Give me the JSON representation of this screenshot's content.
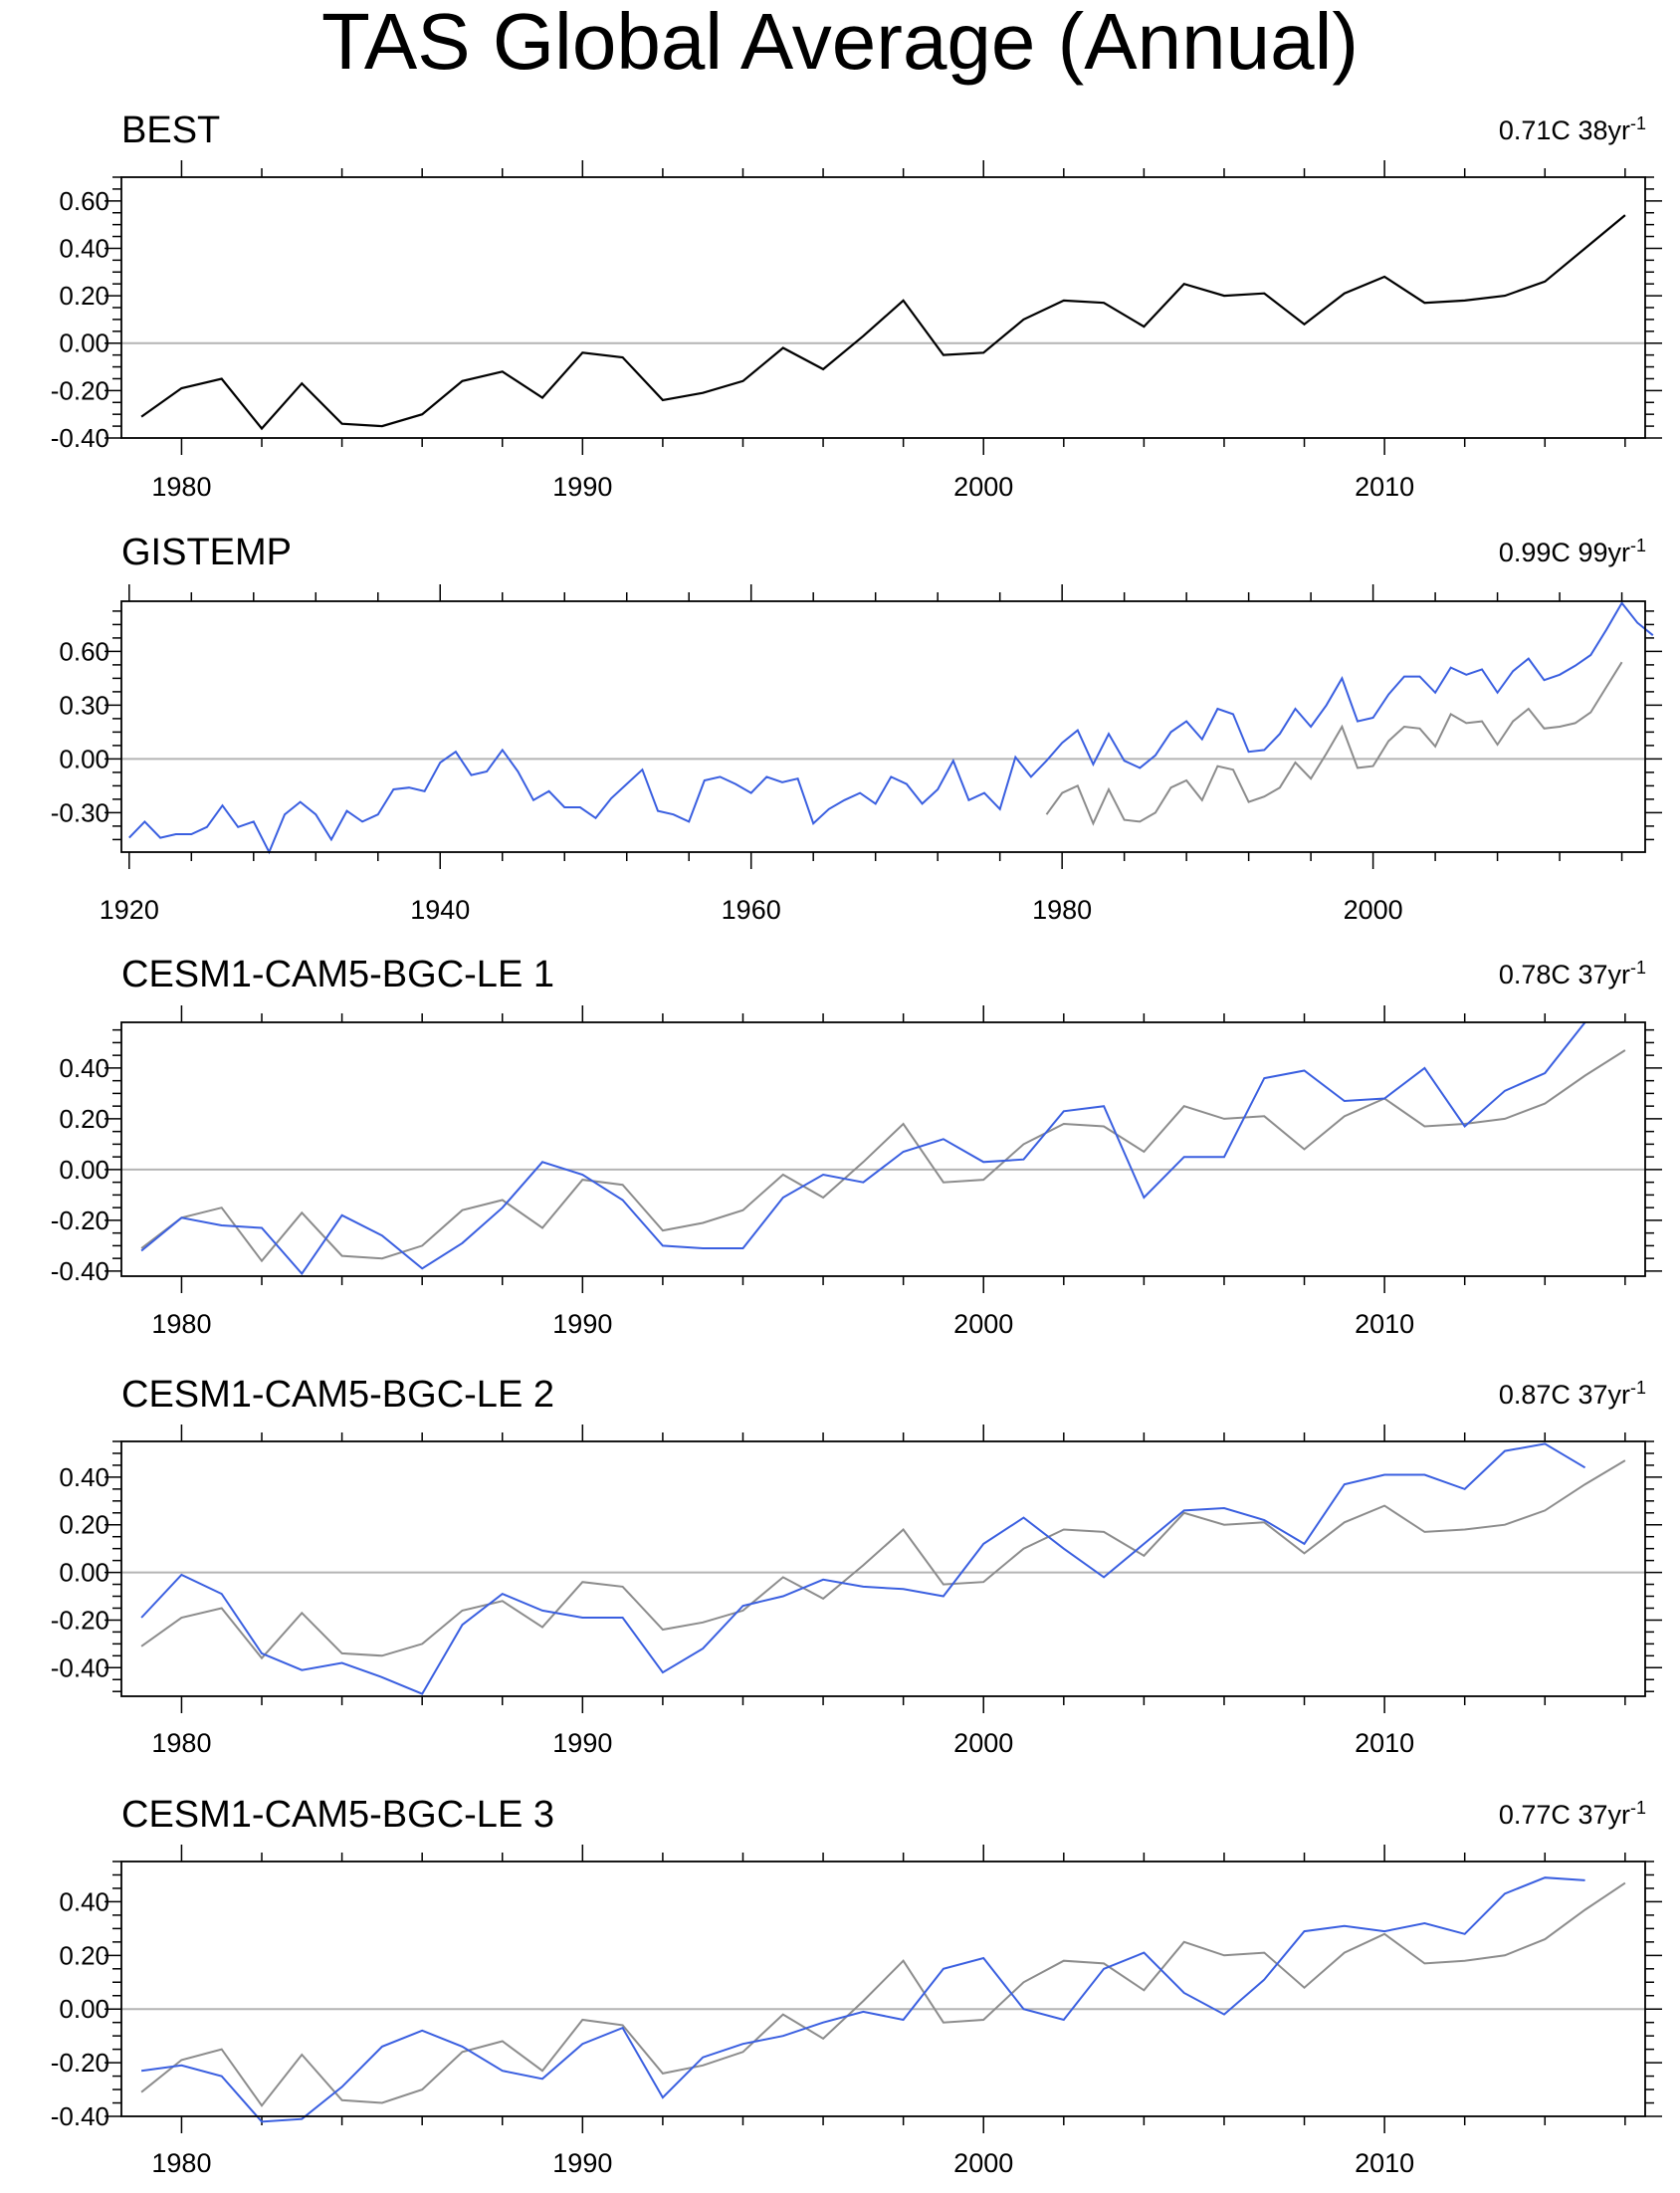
{
  "title": "TAS Global Average (Annual)",
  "colors": {
    "observed": "#000000",
    "model": "#3a5fe0",
    "reference": "#8c8c8c",
    "zero_line": "#b4b4b4",
    "axis": "#000000"
  },
  "chart_data": [
    {
      "type": "line",
      "title": "BEST",
      "trend_value": "0.71C",
      "trend_period": "38yr",
      "trend_exponent": "-1",
      "xlim": [
        1978.5,
        2016.5
      ],
      "ylim": [
        -0.4,
        0.7
      ],
      "yticks": [
        -0.4,
        -0.2,
        0.0,
        0.2,
        0.4,
        0.6
      ],
      "ytick_labels": [
        "-0.40",
        "-0.20",
        "0.00",
        "0.20",
        "0.40",
        "0.60"
      ],
      "xticks": [
        1980,
        1990,
        2000,
        2010
      ],
      "xtick_labels": [
        "1980",
        "1990",
        "2000",
        "2010"
      ],
      "series": [
        {
          "name": "BEST",
          "role": "observed",
          "x_start": 1979,
          "values": [
            -0.31,
            -0.19,
            -0.15,
            -0.36,
            -0.17,
            -0.34,
            -0.35,
            -0.3,
            -0.16,
            -0.12,
            -0.23,
            -0.04,
            -0.06,
            -0.24,
            -0.21,
            -0.16,
            -0.02,
            -0.11,
            0.03,
            0.18,
            -0.05,
            -0.04,
            0.1,
            0.18,
            0.17,
            0.07,
            0.25,
            0.2,
            0.21,
            0.08,
            0.21,
            0.28,
            0.17,
            0.18,
            0.2,
            0.26,
            0.4,
            0.54
          ]
        }
      ]
    },
    {
      "type": "line",
      "title": "GISTEMP",
      "trend_value": "0.99C",
      "trend_period": "99yr",
      "trend_exponent": "-1",
      "xlim": [
        1919.5,
        2017.5
      ],
      "ylim": [
        -0.52,
        0.88
      ],
      "yticks": [
        -0.3,
        0.0,
        0.3,
        0.6
      ],
      "ytick_labels": [
        "-0.30",
        "0.00",
        "0.30",
        "0.60"
      ],
      "xticks": [
        1920,
        1940,
        1960,
        1980,
        2000
      ],
      "xtick_labels": [
        "1920",
        "1940",
        "1960",
        "1980",
        "2000"
      ],
      "series": [
        {
          "name": "GISTEMP",
          "role": "model",
          "x_start": 1920,
          "values": [
            -0.44,
            -0.35,
            -0.44,
            -0.42,
            -0.42,
            -0.38,
            -0.26,
            -0.38,
            -0.35,
            -0.52,
            -0.31,
            -0.24,
            -0.31,
            -0.45,
            -0.29,
            -0.35,
            -0.31,
            -0.17,
            -0.16,
            -0.18,
            -0.02,
            0.04,
            -0.09,
            -0.07,
            0.05,
            -0.07,
            -0.23,
            -0.18,
            -0.27,
            -0.27,
            -0.33,
            -0.22,
            -0.14,
            -0.06,
            -0.29,
            -0.31,
            -0.35,
            -0.12,
            -0.1,
            -0.14,
            -0.19,
            -0.1,
            -0.13,
            -0.11,
            -0.36,
            -0.28,
            -0.23,
            -0.19,
            -0.25,
            -0.1,
            -0.14,
            -0.25,
            -0.17,
            -0.01,
            -0.23,
            -0.19,
            -0.28,
            0.01,
            -0.1,
            -0.01,
            0.09,
            0.16,
            -0.03,
            0.14,
            -0.01,
            -0.05,
            0.02,
            0.15,
            0.21,
            0.11,
            0.28,
            0.25,
            0.04,
            0.05,
            0.14,
            0.28,
            0.18,
            0.3,
            0.45,
            0.21,
            0.23,
            0.36,
            0.46,
            0.46,
            0.37,
            0.51,
            0.47,
            0.5,
            0.37,
            0.49,
            0.56,
            0.44,
            0.47,
            0.52,
            0.58,
            0.72,
            0.87,
            0.76,
            0.69
          ]
        },
        {
          "name": "BEST",
          "role": "reference",
          "x_start": 1979,
          "values": [
            -0.31,
            -0.19,
            -0.15,
            -0.36,
            -0.17,
            -0.34,
            -0.35,
            -0.3,
            -0.16,
            -0.12,
            -0.23,
            -0.04,
            -0.06,
            -0.24,
            -0.21,
            -0.16,
            -0.02,
            -0.11,
            0.03,
            0.18,
            -0.05,
            -0.04,
            0.1,
            0.18,
            0.17,
            0.07,
            0.25,
            0.2,
            0.21,
            0.08,
            0.21,
            0.28,
            0.17,
            0.18,
            0.2,
            0.26,
            0.4,
            0.54
          ]
        }
      ]
    },
    {
      "type": "line",
      "title": "CESM1-CAM5-BGC-LE 1",
      "trend_value": "0.78C",
      "trend_period": "37yr",
      "trend_exponent": "-1",
      "xlim": [
        1978.5,
        2016.5
      ],
      "ylim": [
        -0.42,
        0.58
      ],
      "yticks": [
        -0.4,
        -0.2,
        0.0,
        0.2,
        0.4
      ],
      "ytick_labels": [
        "-0.40",
        "-0.20",
        "0.00",
        "0.20",
        "0.40"
      ],
      "xticks": [
        1980,
        1990,
        2000,
        2010
      ],
      "xtick_labels": [
        "1980",
        "1990",
        "2000",
        "2010"
      ],
      "series": [
        {
          "name": "CESM1-CAM5-BGC-LE 1",
          "role": "model",
          "x_start": 1979,
          "values": [
            -0.32,
            -0.19,
            -0.22,
            -0.23,
            -0.41,
            -0.18,
            -0.26,
            -0.39,
            -0.29,
            -0.15,
            0.03,
            -0.02,
            -0.12,
            -0.3,
            -0.31,
            -0.31,
            -0.11,
            -0.02,
            -0.05,
            0.07,
            0.12,
            0.03,
            0.04,
            0.23,
            0.25,
            -0.11,
            0.05,
            0.05,
            0.36,
            0.39,
            0.27,
            0.28,
            0.4,
            0.17,
            0.31,
            0.38,
            0.58
          ]
        },
        {
          "name": "BEST",
          "role": "reference",
          "x_start": 1979,
          "values": [
            -0.31,
            -0.19,
            -0.15,
            -0.36,
            -0.17,
            -0.34,
            -0.35,
            -0.3,
            -0.16,
            -0.12,
            -0.23,
            -0.04,
            -0.06,
            -0.24,
            -0.21,
            -0.16,
            -0.02,
            -0.11,
            0.03,
            0.18,
            -0.05,
            -0.04,
            0.1,
            0.18,
            0.17,
            0.07,
            0.25,
            0.2,
            0.21,
            0.08,
            0.21,
            0.28,
            0.17,
            0.18,
            0.2,
            0.26,
            0.37,
            0.47
          ]
        }
      ]
    },
    {
      "type": "line",
      "title": "CESM1-CAM5-BGC-LE 2",
      "trend_value": "0.87C",
      "trend_period": "37yr",
      "trend_exponent": "-1",
      "xlim": [
        1978.5,
        2016.5
      ],
      "ylim": [
        -0.52,
        0.55
      ],
      "yticks": [
        -0.4,
        -0.2,
        0.0,
        0.2,
        0.4
      ],
      "ytick_labels": [
        "-0.40",
        "-0.20",
        "0.00",
        "0.20",
        "0.40"
      ],
      "xticks": [
        1980,
        1990,
        2000,
        2010
      ],
      "xtick_labels": [
        "1980",
        "1990",
        "2000",
        "2010"
      ],
      "series": [
        {
          "name": "CESM1-CAM5-BGC-LE 2",
          "role": "model",
          "x_start": 1979,
          "values": [
            -0.19,
            -0.01,
            -0.09,
            -0.34,
            -0.41,
            -0.38,
            -0.44,
            -0.51,
            -0.22,
            -0.09,
            -0.16,
            -0.19,
            -0.19,
            -0.42,
            -0.32,
            -0.14,
            -0.1,
            -0.03,
            -0.06,
            -0.07,
            -0.1,
            0.12,
            0.23,
            0.1,
            -0.02,
            0.12,
            0.26,
            0.27,
            0.22,
            0.12,
            0.37,
            0.41,
            0.41,
            0.35,
            0.51,
            0.54,
            0.44
          ]
        },
        {
          "name": "BEST",
          "role": "reference",
          "x_start": 1979,
          "values": [
            -0.31,
            -0.19,
            -0.15,
            -0.36,
            -0.17,
            -0.34,
            -0.35,
            -0.3,
            -0.16,
            -0.12,
            -0.23,
            -0.04,
            -0.06,
            -0.24,
            -0.21,
            -0.16,
            -0.02,
            -0.11,
            0.03,
            0.18,
            -0.05,
            -0.04,
            0.1,
            0.18,
            0.17,
            0.07,
            0.25,
            0.2,
            0.21,
            0.08,
            0.21,
            0.28,
            0.17,
            0.18,
            0.2,
            0.26,
            0.37,
            0.47
          ]
        }
      ]
    },
    {
      "type": "line",
      "title": "CESM1-CAM5-BGC-LE 3",
      "trend_value": "0.77C",
      "trend_period": "37yr",
      "trend_exponent": "-1",
      "xlim": [
        1978.5,
        2016.5
      ],
      "ylim": [
        -0.4,
        0.55
      ],
      "yticks": [
        -0.4,
        -0.2,
        0.0,
        0.2,
        0.4
      ],
      "ytick_labels": [
        "-0.40",
        "-0.20",
        "0.00",
        "0.20",
        "0.40"
      ],
      "xticks": [
        1980,
        1990,
        2000,
        2010
      ],
      "xtick_labels": [
        "1980",
        "1990",
        "2000",
        "2010"
      ],
      "series": [
        {
          "name": "CESM1-CAM5-BGC-LE 3",
          "role": "model",
          "x_start": 1979,
          "values": [
            -0.23,
            -0.21,
            -0.25,
            -0.42,
            -0.41,
            -0.29,
            -0.14,
            -0.08,
            -0.14,
            -0.23,
            -0.26,
            -0.13,
            -0.07,
            -0.33,
            -0.18,
            -0.13,
            -0.1,
            -0.05,
            -0.01,
            -0.04,
            0.15,
            0.19,
            0.0,
            -0.04,
            0.15,
            0.21,
            0.06,
            -0.02,
            0.11,
            0.29,
            0.31,
            0.29,
            0.32,
            0.28,
            0.43,
            0.49,
            0.48
          ]
        },
        {
          "name": "BEST",
          "role": "reference",
          "x_start": 1979,
          "values": [
            -0.31,
            -0.19,
            -0.15,
            -0.36,
            -0.17,
            -0.34,
            -0.35,
            -0.3,
            -0.16,
            -0.12,
            -0.23,
            -0.04,
            -0.06,
            -0.24,
            -0.21,
            -0.16,
            -0.02,
            -0.11,
            0.03,
            0.18,
            -0.05,
            -0.04,
            0.1,
            0.18,
            0.17,
            0.07,
            0.25,
            0.2,
            0.21,
            0.08,
            0.21,
            0.28,
            0.17,
            0.18,
            0.2,
            0.26,
            0.37,
            0.47
          ]
        }
      ]
    }
  ]
}
